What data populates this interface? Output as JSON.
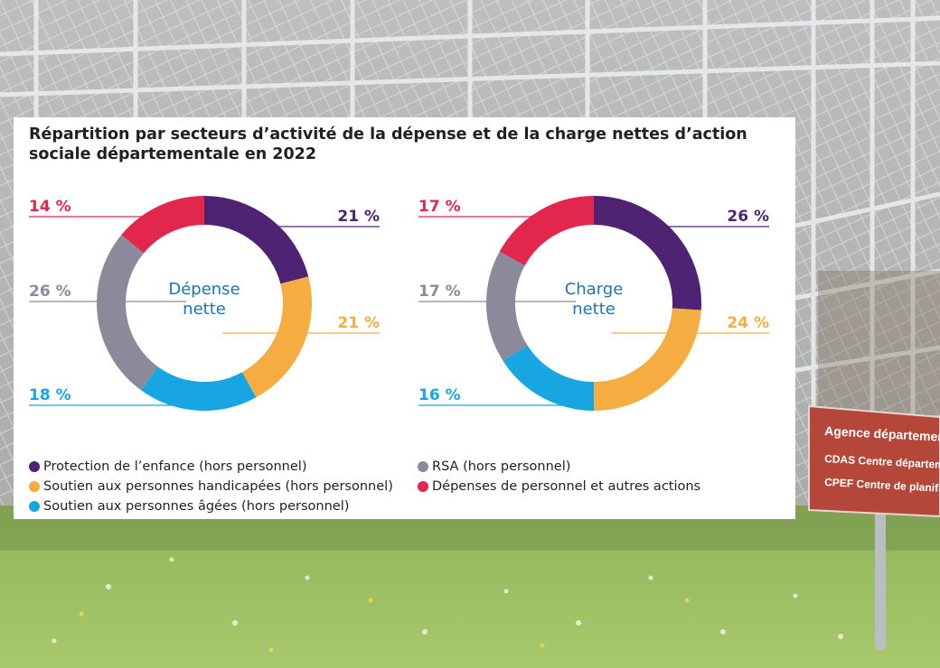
{
  "chart_data": {
    "type": "pie",
    "title": "Répartition par secteurs d’activité de la dépense et de la charge nettes d’action sociale départementale en 2022",
    "categories": [
      "Protection de l’enfance (hors personnel)",
      "Soutien aux personnes handicapées (hors personnel)",
      "Soutien aux personnes âgées (hors personnel)",
      "RSA (hors personnel)",
      "Dépenses de personnel et autres actions"
    ],
    "colors": [
      "#4e2373",
      "#f5ad42",
      "#17a6e1",
      "#8b8a9a",
      "#e3264b"
    ],
    "series": [
      {
        "name": "Dépense nette",
        "label_lines": [
          "Dépense",
          "nette"
        ],
        "values": [
          21,
          21,
          18,
          26,
          14
        ],
        "labels": [
          "21 %",
          "21 %",
          "18 %",
          "26 %",
          "14 %"
        ]
      },
      {
        "name": "Charge nette",
        "label_lines": [
          "Charge",
          "nette"
        ],
        "values": [
          26,
          24,
          16,
          17,
          17
        ],
        "labels": [
          "26 %",
          "24 %",
          "16 %",
          "17 %",
          "17 %"
        ]
      }
    ],
    "legend_position": "bottom"
  },
  "background": {
    "sign_lines": [
      "Agence départementale",
      "CDAS Centre départemental d'",
      "CPEF Centre de planification e"
    ]
  }
}
